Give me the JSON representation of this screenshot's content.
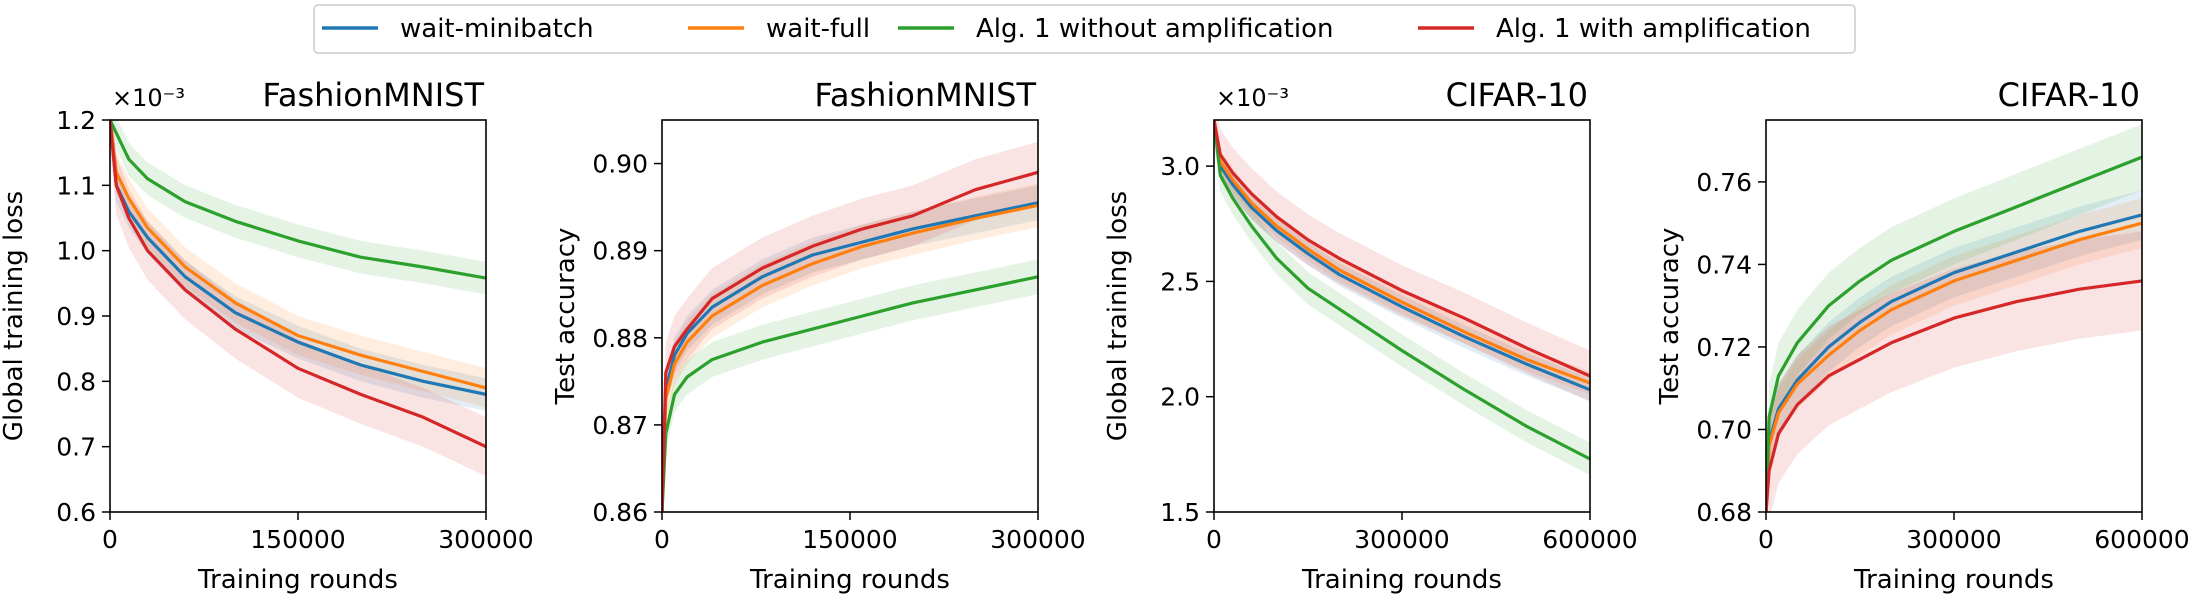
{
  "legend": {
    "entries": [
      {
        "label": "wait-minibatch",
        "color": "#1f77b4"
      },
      {
        "label": "wait-full",
        "color": "#ff7f0e"
      },
      {
        "label": "Alg. 1 without amplification",
        "color": "#2ca02c"
      },
      {
        "label": "Alg. 1 with amplification",
        "color": "#d62728"
      }
    ]
  },
  "chart_data": [
    {
      "type": "line",
      "title": "FashionMNIST",
      "xlabel": "Training rounds",
      "ylabel": "Global training loss",
      "sci_note": "×10⁻³",
      "xlim": [
        0,
        300000
      ],
      "ylim": [
        0.6,
        1.2
      ],
      "xticks": [
        "0",
        "150000",
        "300000"
      ],
      "yticks": [
        "0.6",
        "0.7",
        "0.8",
        "0.9",
        "1.0",
        "1.1",
        "1.2"
      ],
      "x": [
        0,
        5000,
        15000,
        30000,
        60000,
        100000,
        150000,
        200000,
        250000,
        300000
      ],
      "series": [
        {
          "name": "wait-minibatch",
          "color": "#1f77b4",
          "values": [
            1.2,
            1.1,
            1.06,
            1.02,
            0.96,
            0.905,
            0.86,
            0.825,
            0.8,
            0.78
          ],
          "band": 0.025
        },
        {
          "name": "wait-full",
          "color": "#ff7f0e",
          "values": [
            1.2,
            1.12,
            1.08,
            1.035,
            0.975,
            0.92,
            0.87,
            0.84,
            0.815,
            0.79
          ],
          "band": 0.03
        },
        {
          "name": "Alg. 1 without amplification",
          "color": "#2ca02c",
          "values": [
            1.2,
            1.18,
            1.14,
            1.11,
            1.075,
            1.045,
            1.015,
            0.99,
            0.975,
            0.958
          ],
          "band": 0.025
        },
        {
          "name": "Alg. 1 with amplification",
          "color": "#d62728",
          "values": [
            1.2,
            1.1,
            1.05,
            1.0,
            0.94,
            0.88,
            0.82,
            0.78,
            0.745,
            0.7
          ],
          "band": 0.045
        }
      ]
    },
    {
      "type": "line",
      "title": "FashionMNIST",
      "xlabel": "Training rounds",
      "ylabel": "Test accuracy",
      "sci_note": "",
      "xlim": [
        0,
        300000
      ],
      "ylim": [
        0.86,
        0.905
      ],
      "xticks": [
        "0",
        "150000",
        "300000"
      ],
      "yticks": [
        "0.86",
        "0.87",
        "0.88",
        "0.89",
        "0.90"
      ],
      "x": [
        0,
        3000,
        10000,
        20000,
        40000,
        80000,
        120000,
        160000,
        200000,
        250000,
        300000
      ],
      "series": [
        {
          "name": "wait-minibatch",
          "color": "#1f77b4",
          "values": [
            0.86,
            0.874,
            0.878,
            0.8805,
            0.8835,
            0.887,
            0.8895,
            0.891,
            0.8925,
            0.894,
            0.8955
          ],
          "band": 0.002
        },
        {
          "name": "wait-full",
          "color": "#ff7f0e",
          "values": [
            0.86,
            0.873,
            0.877,
            0.8795,
            0.8825,
            0.886,
            0.8885,
            0.8905,
            0.892,
            0.8937,
            0.8952
          ],
          "band": 0.0025
        },
        {
          "name": "Alg. 1 without amplification",
          "color": "#2ca02c",
          "values": [
            0.86,
            0.869,
            0.8735,
            0.8755,
            0.8775,
            0.8795,
            0.881,
            0.8825,
            0.884,
            0.8855,
            0.887
          ],
          "band": 0.002
        },
        {
          "name": "Alg. 1 with amplification",
          "color": "#d62728",
          "values": [
            0.86,
            0.876,
            0.879,
            0.881,
            0.8845,
            0.888,
            0.8905,
            0.8925,
            0.894,
            0.897,
            0.899
          ],
          "band": 0.0035
        }
      ]
    },
    {
      "type": "line",
      "title": "CIFAR-10",
      "xlabel": "Training rounds",
      "ylabel": "Global training loss",
      "sci_note": "×10⁻³",
      "xlim": [
        0,
        600000
      ],
      "ylim": [
        1.5,
        3.2
      ],
      "xticks": [
        "0",
        "300000",
        "600000"
      ],
      "yticks": [
        "1.5",
        "2.0",
        "2.5",
        "3.0"
      ],
      "x": [
        0,
        10000,
        30000,
        60000,
        100000,
        150000,
        200000,
        300000,
        400000,
        500000,
        600000
      ],
      "series": [
        {
          "name": "wait-minibatch",
          "color": "#1f77b4",
          "values": [
            3.2,
            3.0,
            2.92,
            2.82,
            2.72,
            2.62,
            2.53,
            2.39,
            2.26,
            2.14,
            2.03
          ],
          "band": 0.05
        },
        {
          "name": "wait-full",
          "color": "#ff7f0e",
          "values": [
            3.2,
            3.02,
            2.94,
            2.84,
            2.74,
            2.64,
            2.55,
            2.41,
            2.28,
            2.16,
            2.06
          ],
          "band": 0.05
        },
        {
          "name": "Alg. 1 without amplification",
          "color": "#2ca02c",
          "values": [
            3.2,
            2.96,
            2.86,
            2.74,
            2.6,
            2.47,
            2.38,
            2.2,
            2.03,
            1.87,
            1.73
          ],
          "band": 0.07
        },
        {
          "name": "Alg. 1 with amplification",
          "color": "#d62728",
          "values": [
            3.2,
            3.05,
            2.97,
            2.88,
            2.78,
            2.68,
            2.6,
            2.46,
            2.34,
            2.21,
            2.09
          ],
          "band": 0.11
        }
      ]
    },
    {
      "type": "line",
      "title": "CIFAR-10",
      "xlabel": "Training rounds",
      "ylabel": "Test accuracy",
      "sci_note": "",
      "xlim": [
        0,
        600000
      ],
      "ylim": [
        0.68,
        0.775
      ],
      "xticks": [
        "0",
        "300000",
        "600000"
      ],
      "yticks": [
        "0.68",
        "0.70",
        "0.72",
        "0.74",
        "0.76"
      ],
      "x": [
        0,
        5000,
        20000,
        50000,
        100000,
        150000,
        200000,
        300000,
        400000,
        500000,
        600000
      ],
      "series": [
        {
          "name": "wait-minibatch",
          "color": "#1f77b4",
          "values": [
            0.68,
            0.697,
            0.705,
            0.712,
            0.72,
            0.726,
            0.731,
            0.738,
            0.743,
            0.748,
            0.752
          ],
          "band": 0.006
        },
        {
          "name": "wait-full",
          "color": "#ff7f0e",
          "values": [
            0.68,
            0.696,
            0.704,
            0.711,
            0.718,
            0.724,
            0.729,
            0.736,
            0.741,
            0.746,
            0.75
          ],
          "band": 0.006
        },
        {
          "name": "Alg. 1 without amplification",
          "color": "#2ca02c",
          "values": [
            0.68,
            0.703,
            0.713,
            0.721,
            0.73,
            0.736,
            0.741,
            0.748,
            0.754,
            0.76,
            0.766
          ],
          "band": 0.008
        },
        {
          "name": "Alg. 1 with amplification",
          "color": "#d62728",
          "values": [
            0.68,
            0.69,
            0.699,
            0.706,
            0.713,
            0.717,
            0.721,
            0.727,
            0.731,
            0.734,
            0.736
          ],
          "band": 0.012
        }
      ]
    }
  ]
}
